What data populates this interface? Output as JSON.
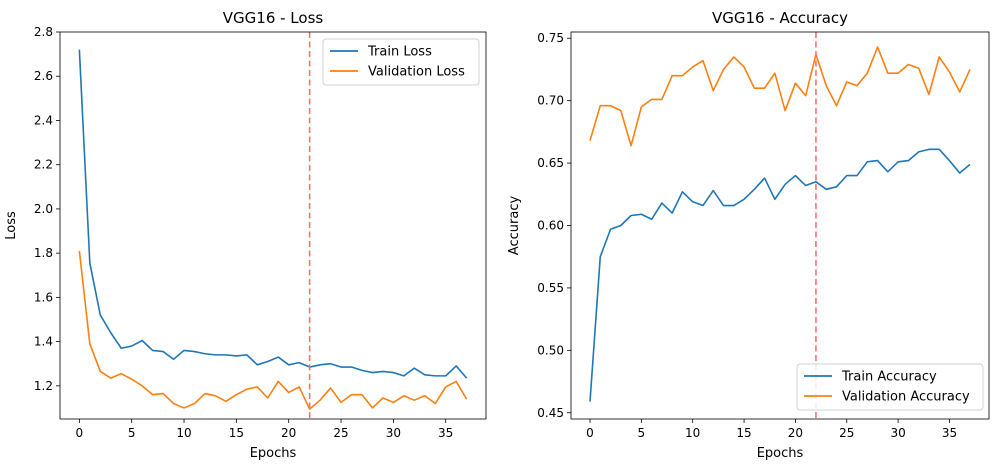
{
  "chart_data": [
    {
      "type": "line",
      "title": "VGG16 - Loss",
      "xlabel": "Epochs",
      "ylabel": "Loss",
      "xlim": [
        -1.85,
        38.85
      ],
      "ylim": [
        1.05,
        2.8
      ],
      "xticks": [
        0,
        5,
        10,
        15,
        20,
        25,
        30,
        35
      ],
      "yticks": [
        1.2,
        1.4,
        1.6,
        1.8,
        2.0,
        2.2,
        2.4,
        2.6,
        2.8
      ],
      "ytick_decimals": 1,
      "grid": false,
      "legend_position": "top-right",
      "vline": {
        "x": 22,
        "color": "#ff6f6f",
        "style": "dashed"
      },
      "x": [
        0,
        1,
        2,
        3,
        4,
        5,
        6,
        7,
        8,
        9,
        10,
        11,
        12,
        13,
        14,
        15,
        16,
        17,
        18,
        19,
        20,
        21,
        22,
        23,
        24,
        25,
        26,
        27,
        28,
        29,
        30,
        31,
        32,
        33,
        34,
        35,
        36,
        37
      ],
      "series": [
        {
          "name": "Train Loss",
          "color": "#1f77b4",
          "values": [
            2.72,
            1.755,
            1.52,
            1.44,
            1.37,
            1.38,
            1.405,
            1.36,
            1.355,
            1.32,
            1.36,
            1.355,
            1.345,
            1.34,
            1.34,
            1.335,
            1.34,
            1.295,
            1.31,
            1.33,
            1.295,
            1.305,
            1.285,
            1.295,
            1.3,
            1.285,
            1.285,
            1.27,
            1.26,
            1.265,
            1.26,
            1.245,
            1.28,
            1.25,
            1.245,
            1.245,
            1.29,
            1.235
          ]
        },
        {
          "name": "Validation Loss",
          "color": "#ff7f0e",
          "values": [
            1.81,
            1.39,
            1.265,
            1.235,
            1.255,
            1.23,
            1.2,
            1.16,
            1.165,
            1.12,
            1.1,
            1.12,
            1.165,
            1.155,
            1.13,
            1.16,
            1.185,
            1.195,
            1.145,
            1.22,
            1.17,
            1.195,
            1.095,
            1.135,
            1.19,
            1.125,
            1.16,
            1.16,
            1.1,
            1.145,
            1.125,
            1.155,
            1.135,
            1.155,
            1.12,
            1.195,
            1.22,
            1.14
          ]
        }
      ]
    },
    {
      "type": "line",
      "title": "VGG16 - Accuracy",
      "xlabel": "Epochs",
      "ylabel": "Accuracy",
      "xlim": [
        -1.85,
        38.85
      ],
      "ylim": [
        0.445,
        0.755
      ],
      "xticks": [
        0,
        5,
        10,
        15,
        20,
        25,
        30,
        35
      ],
      "yticks": [
        0.45,
        0.5,
        0.55,
        0.6,
        0.65,
        0.7,
        0.75
      ],
      "ytick_decimals": 2,
      "grid": false,
      "legend_position": "bottom-right",
      "vline": {
        "x": 22,
        "color": "#ff6f6f",
        "style": "dashed"
      },
      "x": [
        0,
        1,
        2,
        3,
        4,
        5,
        6,
        7,
        8,
        9,
        10,
        11,
        12,
        13,
        14,
        15,
        16,
        17,
        18,
        19,
        20,
        21,
        22,
        23,
        24,
        25,
        26,
        27,
        28,
        29,
        30,
        31,
        32,
        33,
        34,
        35,
        36,
        37
      ],
      "series": [
        {
          "name": "Train Accuracy",
          "color": "#1f77b4",
          "values": [
            0.459,
            0.575,
            0.597,
            0.6,
            0.608,
            0.609,
            0.605,
            0.618,
            0.61,
            0.627,
            0.619,
            0.616,
            0.628,
            0.616,
            0.616,
            0.621,
            0.629,
            0.638,
            0.621,
            0.633,
            0.64,
            0.632,
            0.635,
            0.629,
            0.631,
            0.64,
            0.64,
            0.651,
            0.652,
            0.643,
            0.651,
            0.652,
            0.659,
            0.661,
            0.661,
            0.652,
            0.642,
            0.649
          ]
        },
        {
          "name": "Validation Accuracy",
          "color": "#ff7f0e",
          "values": [
            0.668,
            0.696,
            0.696,
            0.692,
            0.664,
            0.695,
            0.701,
            0.701,
            0.72,
            0.72,
            0.727,
            0.732,
            0.708,
            0.725,
            0.735,
            0.727,
            0.71,
            0.71,
            0.722,
            0.692,
            0.714,
            0.704,
            0.737,
            0.712,
            0.696,
            0.715,
            0.712,
            0.722,
            0.743,
            0.722,
            0.722,
            0.729,
            0.726,
            0.705,
            0.735,
            0.723,
            0.707,
            0.725
          ]
        }
      ]
    }
  ]
}
